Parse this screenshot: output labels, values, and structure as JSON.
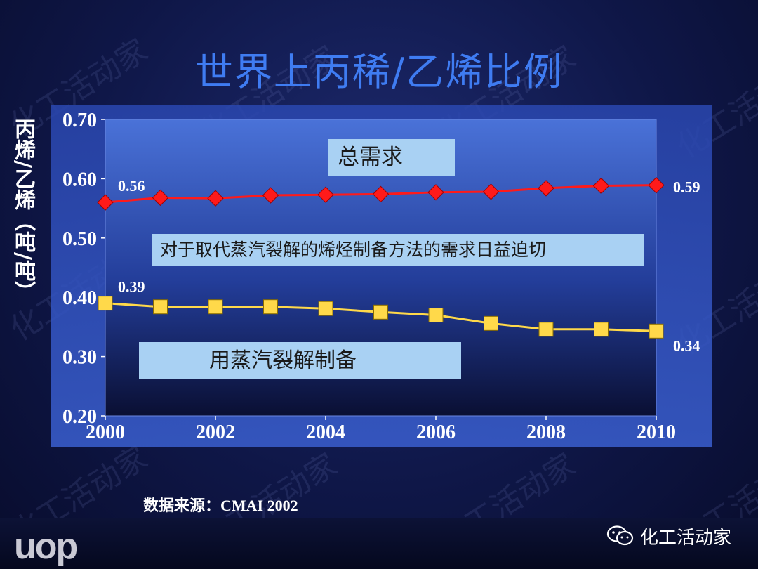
{
  "slide": {
    "title": "世界上丙稀/乙烯比例",
    "watermark": "化工活动家",
    "source_label": "数据来源：",
    "source_name": "CMAI 2002",
    "logo_text": "uop",
    "brand_text": "化工活动家",
    "colors": {
      "background": "#0f1748",
      "title": "#3f7cf2",
      "plot_top": "#4a72d8",
      "plot_bottom": "#0a0f33",
      "total_series": "#ff1a1a",
      "steam_series": "#ffd94a",
      "callout": "#a9d1f3"
    }
  },
  "callouts": {
    "total_demand": "总需求",
    "alternatives": "对于取代蒸汽裂解的烯烃制备方法的需求日益迫切",
    "steam_cracking": "用蒸汽裂解制备"
  },
  "chart_data": {
    "type": "line",
    "title": "世界上丙稀/乙烯比例",
    "ylabel": "丙烯/乙烯（吨/吨）",
    "xlabel": "",
    "x": [
      2000,
      2001,
      2002,
      2003,
      2004,
      2005,
      2006,
      2007,
      2008,
      2009,
      2010
    ],
    "xticks": [
      2000,
      2002,
      2004,
      2006,
      2008,
      2010
    ],
    "ylim": [
      0.2,
      0.7
    ],
    "yticks": [
      "0.20",
      "0.30",
      "0.40",
      "0.50",
      "0.60",
      "0.70"
    ],
    "grid": false,
    "series": [
      {
        "key": "total",
        "marker": "diamond",
        "color": "#ff1a1a",
        "values": [
          0.56,
          0.568,
          0.567,
          0.572,
          0.573,
          0.574,
          0.577,
          0.578,
          0.584,
          0.588,
          0.589
        ],
        "start_label": "0.56",
        "end_label": "0.59"
      },
      {
        "key": "steam",
        "marker": "square",
        "color": "#ffd94a",
        "values": [
          0.39,
          0.384,
          0.384,
          0.384,
          0.381,
          0.375,
          0.37,
          0.356,
          0.346,
          0.346,
          0.343
        ],
        "start_label": "0.39",
        "end_label": "0.34"
      }
    ]
  }
}
